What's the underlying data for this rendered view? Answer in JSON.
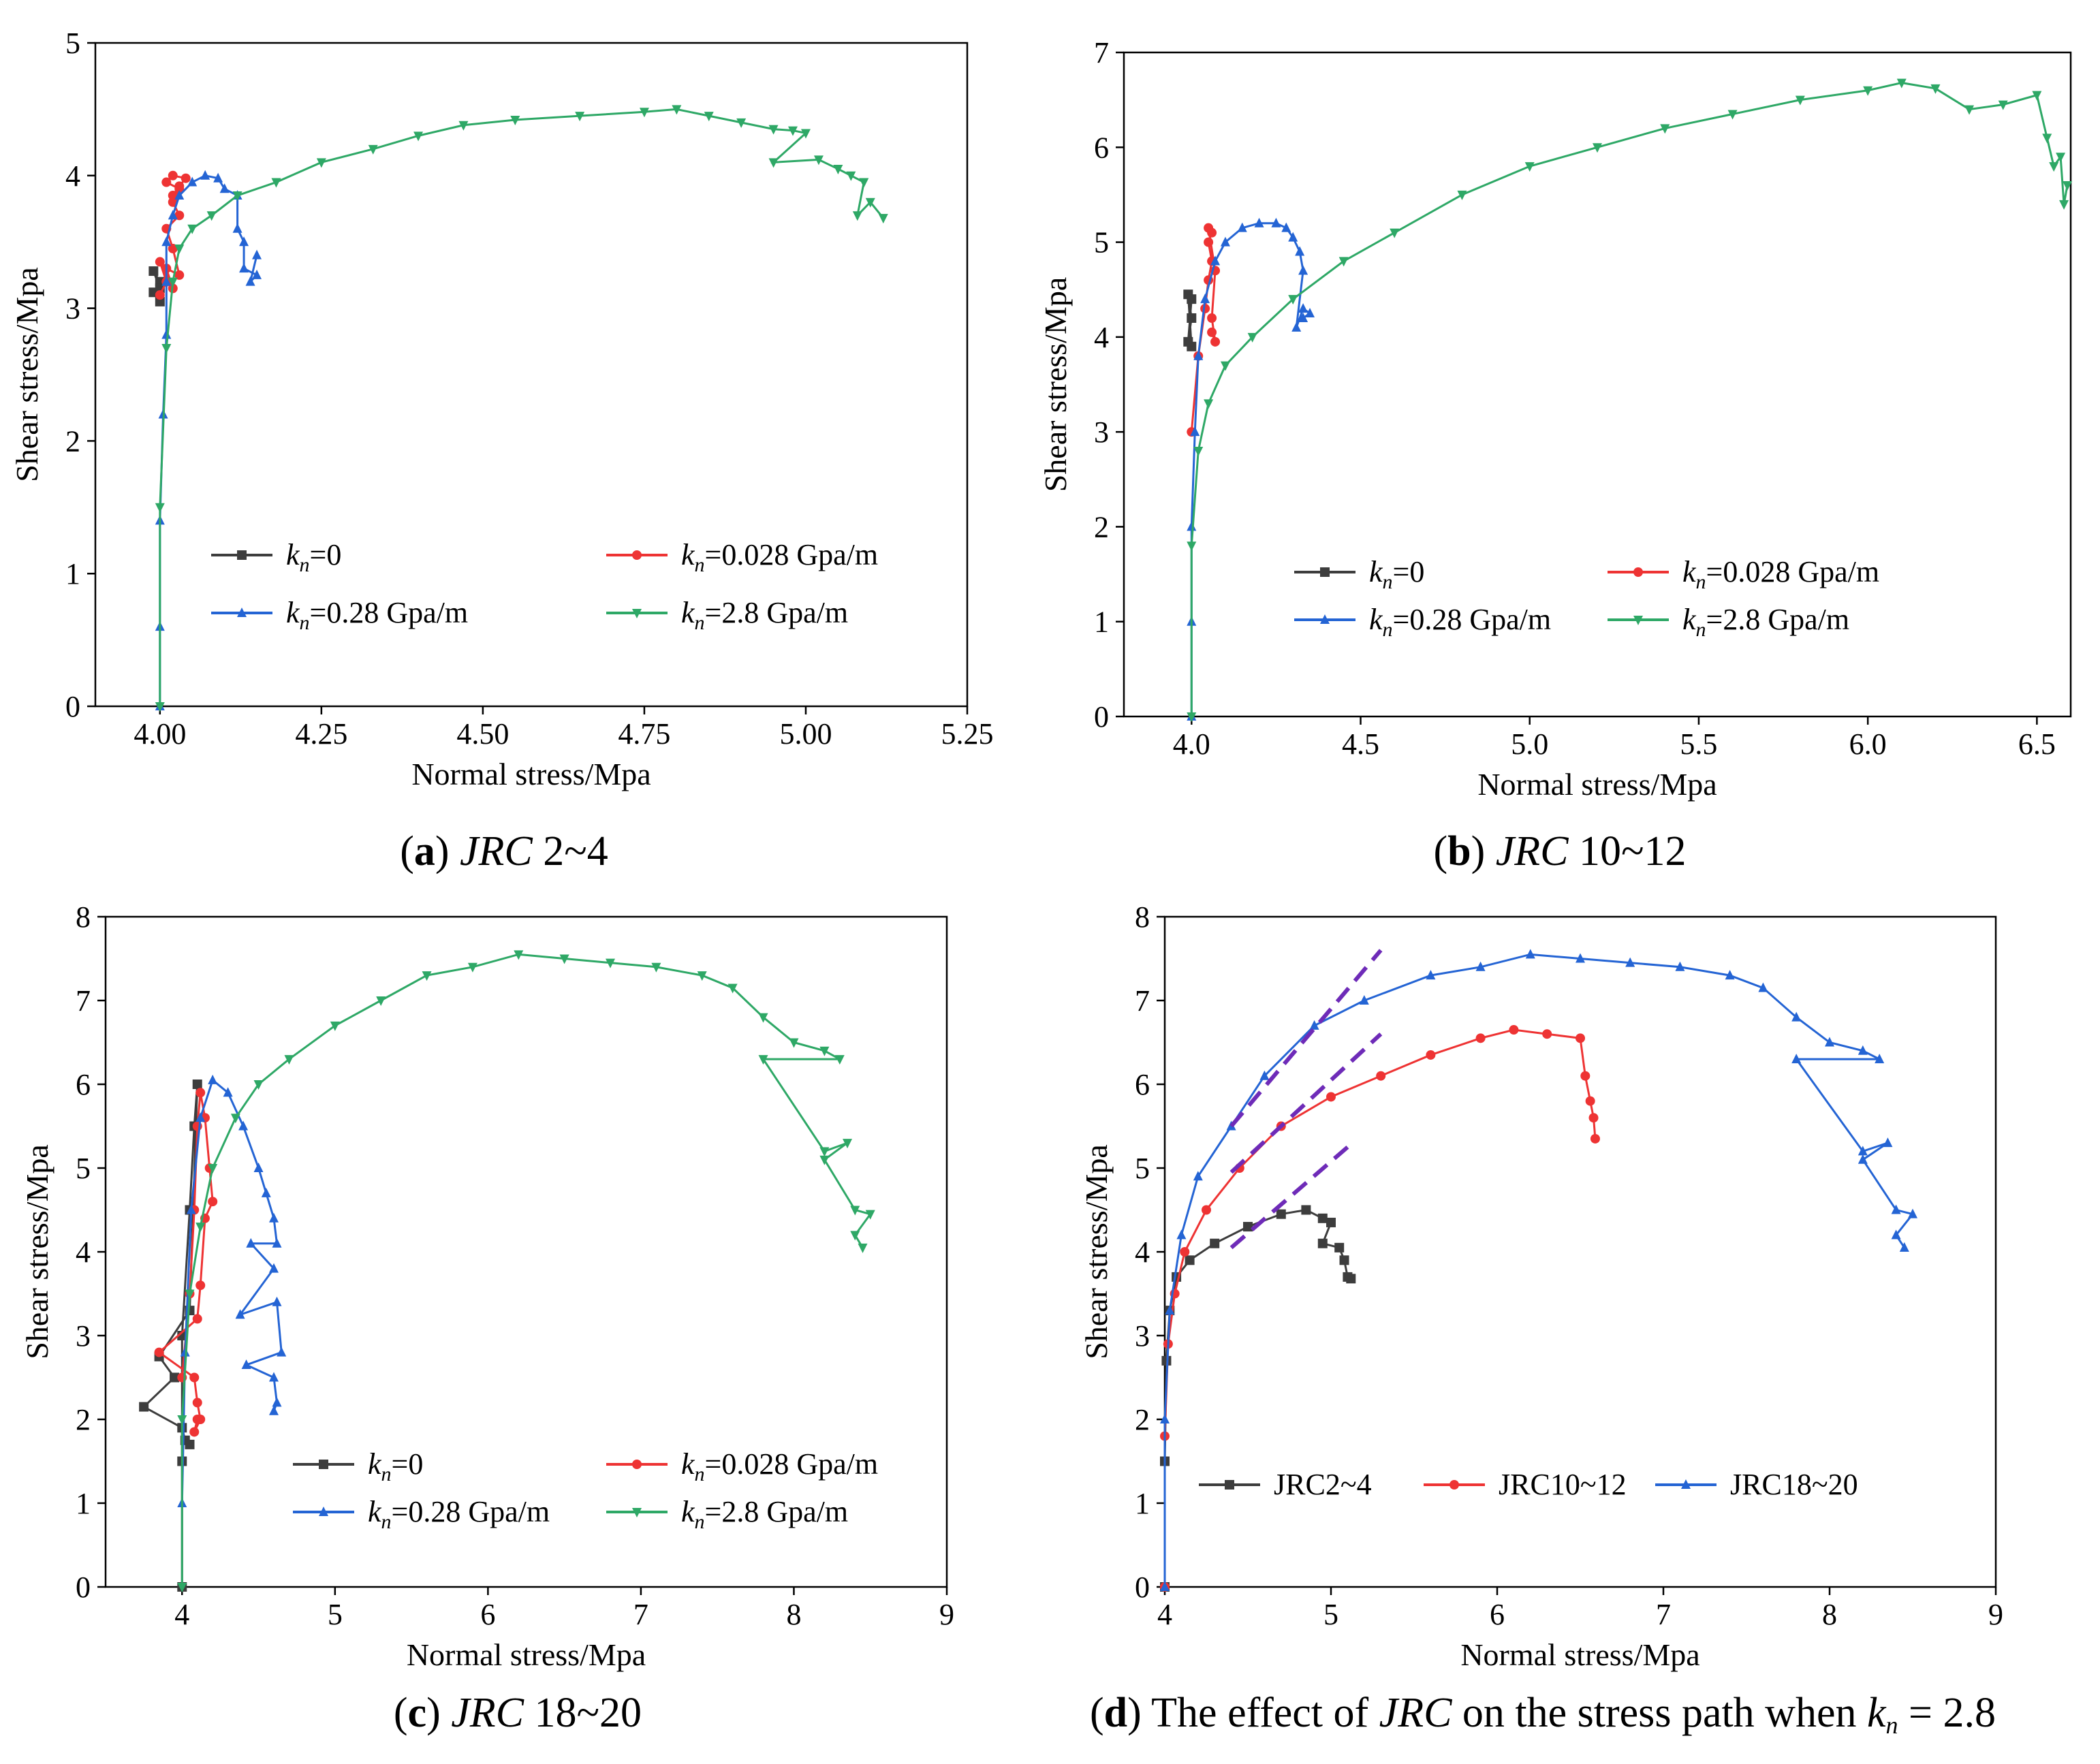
{
  "figure": {
    "colors": {
      "kn0": "#3d3d3d",
      "kn0028": "#ee3333",
      "kn028": "#2464d4",
      "kn28": "#2ea866",
      "fit": "#6e2bb8"
    },
    "legend_symbol_k": "k",
    "legend_symbol_n": "n",
    "captions": [
      {
        "letter": "a",
        "pre": "",
        "italic": "JRC",
        "post": " 2~4",
        "italic2": "",
        "sub": "",
        "post2": ""
      },
      {
        "letter": "b",
        "pre": "",
        "italic": "JRC",
        "post": " 10~12",
        "italic2": "",
        "sub": "",
        "post2": ""
      },
      {
        "letter": "c",
        "pre": "",
        "italic": "JRC",
        "post": " 18~20",
        "italic2": "",
        "sub": "",
        "post2": ""
      },
      {
        "letter": "d",
        "pre": " The effect of ",
        "italic": "JRC",
        "post": " on the stress path when ",
        "italic2": "k",
        "sub": "n",
        "post2": " = 2.8"
      }
    ]
  },
  "chart_data": [
    {
      "type": "line",
      "panel": "a",
      "xlabel": "Normal stress/Mpa",
      "ylabel": "Shear stress/Mpa",
      "xlim": [
        3.9,
        5.25
      ],
      "ylim": [
        0,
        5
      ],
      "xticks": [
        "4.00",
        "4.25",
        "4.50",
        "4.75",
        "5.00",
        "5.25"
      ],
      "yticks": [
        "0",
        "1",
        "2",
        "3",
        "4",
        "5"
      ],
      "series": [
        {
          "key": "kn0",
          "name": "=0",
          "unit": "",
          "marker": "square",
          "x": [
            4.0,
            3.99,
            4.0,
            3.99,
            4.0
          ],
          "y": [
            3.05,
            3.12,
            3.2,
            3.28,
            3.15
          ]
        },
        {
          "key": "kn0028",
          "name": "=0.028 Gpa/m",
          "unit": "",
          "marker": "circle",
          "x": [
            4.0,
            4.01,
            4.0,
            4.02,
            4.01,
            4.03,
            4.02,
            4.01,
            4.03,
            4.02,
            4.03,
            4.01,
            4.02,
            4.04,
            4.03,
            4.02
          ],
          "y": [
            3.1,
            3.2,
            3.35,
            3.15,
            3.3,
            3.25,
            3.45,
            3.6,
            3.7,
            3.8,
            3.9,
            3.95,
            4.0,
            3.98,
            3.92,
            3.85
          ]
        },
        {
          "key": "kn028",
          "name": "=0.28 Gpa/m",
          "unit": "",
          "marker": "triangle",
          "x": [
            4.0,
            4.0,
            4.0,
            4.005,
            4.01,
            4.01,
            4.01,
            4.02,
            4.03,
            4.05,
            4.07,
            4.09,
            4.1,
            4.12,
            4.12,
            4.13,
            4.13,
            4.15,
            4.14,
            4.15
          ],
          "y": [
            0,
            0.6,
            1.4,
            2.2,
            2.8,
            3.2,
            3.5,
            3.7,
            3.85,
            3.95,
            4.0,
            3.98,
            3.9,
            3.85,
            3.6,
            3.5,
            3.3,
            3.25,
            3.2,
            3.4
          ]
        },
        {
          "key": "kn28",
          "name": "=2.8 Gpa/m",
          "unit": "",
          "marker": "triangle-down",
          "x": [
            4.0,
            4.0,
            4.01,
            4.02,
            4.03,
            4.05,
            4.08,
            4.12,
            4.18,
            4.25,
            4.33,
            4.4,
            4.47,
            4.55,
            4.65,
            4.75,
            4.8,
            4.85,
            4.9,
            4.95,
            4.98,
            5.0,
            4.95,
            5.02,
            5.05,
            5.07,
            5.09,
            5.08,
            5.1,
            5.12
          ],
          "y": [
            0,
            1.5,
            2.7,
            3.2,
            3.45,
            3.6,
            3.7,
            3.85,
            3.95,
            4.1,
            4.2,
            4.3,
            4.38,
            4.42,
            4.45,
            4.48,
            4.5,
            4.45,
            4.4,
            4.35,
            4.34,
            4.32,
            4.1,
            4.12,
            4.05,
            4.0,
            3.95,
            3.7,
            3.8,
            3.68
          ]
        }
      ]
    },
    {
      "type": "line",
      "panel": "b",
      "xlabel": "Normal stress/Mpa",
      "ylabel": "Shear stress/Mpa",
      "xlim": [
        3.8,
        6.6
      ],
      "ylim": [
        0,
        7
      ],
      "xticks": [
        "4.0",
        "4.5",
        "5.0",
        "5.5",
        "6.0",
        "6.5"
      ],
      "yticks": [
        "0",
        "1",
        "2",
        "3",
        "4",
        "5",
        "6",
        "7"
      ],
      "series": [
        {
          "key": "kn0",
          "name": "=0",
          "unit": "",
          "marker": "square",
          "x": [
            4.0,
            3.99,
            4.0,
            3.99,
            4.0
          ],
          "y": [
            3.9,
            4.45,
            4.2,
            3.95,
            4.4
          ]
        },
        {
          "key": "kn0028",
          "name": "=0.028 Gpa/m",
          "unit": "",
          "marker": "circle",
          "x": [
            4.0,
            4.02,
            4.04,
            4.05,
            4.06,
            4.05,
            4.06,
            4.05,
            4.07,
            4.06,
            4.07,
            4.06
          ],
          "y": [
            3.0,
            3.8,
            4.3,
            4.6,
            4.8,
            5.0,
            5.1,
            5.15,
            4.7,
            4.2,
            3.95,
            4.05
          ]
        },
        {
          "key": "kn028",
          "name": "=0.28 Gpa/m",
          "unit": "",
          "marker": "triangle",
          "x": [
            4.0,
            4.0,
            4.0,
            4.01,
            4.02,
            4.04,
            4.07,
            4.1,
            4.15,
            4.2,
            4.25,
            4.28,
            4.3,
            4.32,
            4.33,
            4.31,
            4.33,
            4.35,
            4.33
          ],
          "y": [
            0,
            1.0,
            2.0,
            3.0,
            3.8,
            4.4,
            4.8,
            5.0,
            5.15,
            5.2,
            5.2,
            5.15,
            5.05,
            4.9,
            4.7,
            4.1,
            4.3,
            4.25,
            4.2
          ]
        },
        {
          "key": "kn28",
          "name": "=2.8 Gpa/m",
          "unit": "",
          "marker": "triangle-down",
          "x": [
            4.0,
            4.0,
            4.02,
            4.05,
            4.1,
            4.18,
            4.3,
            4.45,
            4.6,
            4.8,
            5.0,
            5.2,
            5.4,
            5.6,
            5.8,
            6.0,
            6.1,
            6.2,
            6.3,
            6.4,
            6.5,
            6.53,
            6.55,
            6.57,
            6.58,
            6.59
          ],
          "y": [
            0,
            1.8,
            2.8,
            3.3,
            3.7,
            4.0,
            4.4,
            4.8,
            5.1,
            5.5,
            5.8,
            6.0,
            6.2,
            6.35,
            6.5,
            6.6,
            6.68,
            6.62,
            6.4,
            6.45,
            6.55,
            6.1,
            5.8,
            5.9,
            5.4,
            5.6
          ]
        }
      ]
    },
    {
      "type": "line",
      "panel": "c",
      "xlabel": "Normal stress/Mpa",
      "ylabel": "Shear stress/Mpa",
      "xlim": [
        3.5,
        9
      ],
      "ylim": [
        0,
        8
      ],
      "xticks": [
        "4",
        "5",
        "6",
        "7",
        "8",
        "9"
      ],
      "yticks": [
        "0",
        "1",
        "2",
        "3",
        "4",
        "5",
        "6",
        "7",
        "8"
      ],
      "series": [
        {
          "key": "kn0",
          "name": "=0",
          "unit": "",
          "marker": "square",
          "x": [
            4.0,
            4.0,
            4.0,
            4.05,
            4.08,
            4.1,
            4.05,
            3.85,
            3.95,
            3.75,
            4.0,
            4.02,
            4.05
          ],
          "y": [
            0,
            1.5,
            3.0,
            4.5,
            5.5,
            6.0,
            3.3,
            2.75,
            2.5,
            2.15,
            1.9,
            1.75,
            1.7
          ]
        },
        {
          "key": "kn0028",
          "name": "=0.028 Gpa/m",
          "unit": "",
          "marker": "circle",
          "x": [
            4.0,
            4.05,
            4.08,
            4.1,
            4.12,
            4.15,
            4.18,
            4.2,
            4.15,
            4.12,
            4.1,
            3.85,
            4.08,
            4.1,
            4.12,
            4.08,
            4.1
          ],
          "y": [
            2.5,
            3.5,
            4.5,
            5.5,
            5.9,
            5.6,
            5.0,
            4.6,
            4.4,
            3.6,
            3.2,
            2.8,
            2.5,
            2.2,
            2.0,
            1.85,
            2.0
          ]
        },
        {
          "key": "kn028",
          "name": "=0.28 Gpa/m",
          "unit": "",
          "marker": "triangle",
          "x": [
            4.0,
            4.02,
            4.06,
            4.12,
            4.2,
            4.3,
            4.4,
            4.5,
            4.55,
            4.6,
            4.62,
            4.45,
            4.6,
            4.38,
            4.62,
            4.65,
            4.42,
            4.6,
            4.62,
            4.6
          ],
          "y": [
            1.0,
            2.8,
            4.5,
            5.6,
            6.05,
            5.9,
            5.5,
            5.0,
            4.7,
            4.4,
            4.1,
            4.1,
            3.8,
            3.25,
            3.4,
            2.8,
            2.65,
            2.5,
            2.2,
            2.1
          ]
        },
        {
          "key": "kn28",
          "name": "=2.8 Gpa/m",
          "unit": "",
          "marker": "triangle-down",
          "x": [
            4.0,
            4.0,
            4.05,
            4.12,
            4.2,
            4.35,
            4.5,
            4.7,
            5.0,
            5.3,
            5.6,
            5.9,
            6.2,
            6.5,
            6.8,
            7.1,
            7.4,
            7.6,
            7.8,
            8.0,
            8.2,
            8.3,
            7.8,
            8.2,
            8.35,
            8.2,
            8.4,
            8.5,
            8.4,
            8.45
          ],
          "y": [
            0,
            2.0,
            3.5,
            4.3,
            5.0,
            5.6,
            6.0,
            6.3,
            6.7,
            7.0,
            7.3,
            7.4,
            7.55,
            7.5,
            7.45,
            7.4,
            7.3,
            7.15,
            6.8,
            6.5,
            6.4,
            6.3,
            6.3,
            5.2,
            5.3,
            5.1,
            4.5,
            4.45,
            4.2,
            4.05
          ]
        }
      ]
    },
    {
      "type": "line",
      "panel": "d",
      "xlabel": "Normal stress/Mpa",
      "ylabel": "Shear stress/Mpa",
      "xlim": [
        4,
        9
      ],
      "ylim": [
        0,
        8
      ],
      "xticks": [
        "4",
        "5",
        "6",
        "7",
        "8",
        "9"
      ],
      "yticks": [
        "0",
        "1",
        "2",
        "3",
        "4",
        "5",
        "6",
        "7",
        "8"
      ],
      "series": [
        {
          "key": "kn0",
          "name": "JRC2~4",
          "marker": "square",
          "x": [
            4.0,
            4.0,
            4.01,
            4.03,
            4.07,
            4.15,
            4.3,
            4.5,
            4.7,
            4.85,
            4.95,
            5.0,
            4.95,
            5.05,
            5.08,
            5.1,
            5.12
          ],
          "y": [
            0,
            1.5,
            2.7,
            3.3,
            3.7,
            3.9,
            4.1,
            4.3,
            4.45,
            4.5,
            4.4,
            4.35,
            4.1,
            4.05,
            3.9,
            3.7,
            3.68
          ]
        },
        {
          "key": "kn0028",
          "name": "JRC10~12",
          "marker": "circle",
          "x": [
            4.0,
            4.0,
            4.02,
            4.06,
            4.12,
            4.25,
            4.45,
            4.7,
            5.0,
            5.3,
            5.6,
            5.9,
            6.1,
            6.3,
            6.5,
            6.53,
            6.56,
            6.58,
            6.59
          ],
          "y": [
            0,
            1.8,
            2.9,
            3.5,
            4.0,
            4.5,
            5.0,
            5.5,
            5.85,
            6.1,
            6.35,
            6.55,
            6.65,
            6.6,
            6.55,
            6.1,
            5.8,
            5.6,
            5.35
          ]
        },
        {
          "key": "kn028",
          "name": "JRC18~20",
          "marker": "triangle",
          "x": [
            4.0,
            4.0,
            4.03,
            4.1,
            4.2,
            4.4,
            4.6,
            4.9,
            5.2,
            5.6,
            5.9,
            6.2,
            6.5,
            6.8,
            7.1,
            7.4,
            7.6,
            7.8,
            8.0,
            8.2,
            8.3,
            7.8,
            8.2,
            8.35,
            8.2,
            8.4,
            8.5,
            8.4,
            8.45
          ],
          "y": [
            0,
            2.0,
            3.3,
            4.2,
            4.9,
            5.5,
            6.1,
            6.7,
            7.0,
            7.3,
            7.4,
            7.55,
            7.5,
            7.45,
            7.4,
            7.3,
            7.15,
            6.8,
            6.5,
            6.4,
            6.3,
            6.3,
            5.2,
            5.3,
            5.1,
            4.5,
            4.45,
            4.2,
            4.05
          ]
        },
        {
          "key": "fit",
          "name": "",
          "marker": "dashed",
          "lines": [
            {
              "x": [
                4.4,
                5.1
              ],
              "y": [
                4.05,
                5.25
              ]
            },
            {
              "x": [
                4.4,
                5.3
              ],
              "y": [
                4.95,
                6.6
              ]
            },
            {
              "x": [
                4.4,
                5.3
              ],
              "y": [
                5.5,
                7.6
              ]
            }
          ]
        }
      ]
    }
  ]
}
